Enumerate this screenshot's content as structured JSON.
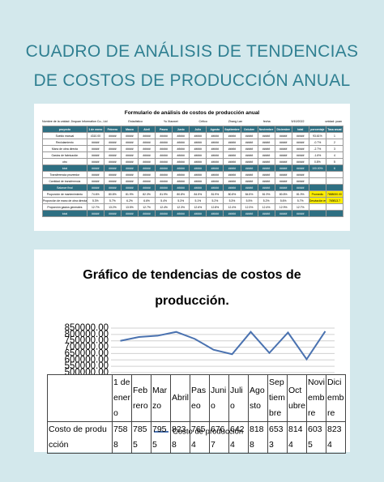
{
  "header": {
    "title_line1": "CUADRO DE ANÁLISIS DE TENDENCIAS",
    "title_line2": "DE COSTOS DE PRODUCCIÓN ANUAL"
  },
  "sheet": {
    "title": "Formulario de análisis de costos de producción anual",
    "info": [
      "Nombre de la unidad: Jinquan Information Co., Ltd",
      "Estadístico",
      "Yu Xiaowei",
      "Crítico",
      "Zhang Lan",
      "fecha",
      "5/10/2022",
      "unidad: yuan"
    ],
    "header": [
      "proyecto",
      "1 de enero",
      "Febrero",
      "Marzo",
      "Abril",
      "Paseo",
      "Junio",
      "Julio",
      "Agosto",
      "Septiembre",
      "Octubre",
      "Noviembre",
      "Diciembre",
      "total",
      "porcentaje",
      "Tasa anual"
    ],
    "rows": [
      [
        "Sueldo manual",
        "4310.00",
        "#####",
        "#####",
        "#####",
        "#####",
        "#####",
        "#####",
        "#####",
        "#####",
        "#####",
        "#####",
        "#####",
        "#####",
        "93.61%",
        "1"
      ],
      [
        "Reclutamiento",
        "#####",
        "#####",
        "#####",
        "#####",
        "#####",
        "#####",
        "#####",
        "#####",
        "#####",
        "#####",
        "#####",
        "#####",
        "#####",
        "-0.7%",
        "2"
      ],
      [
        "Mano de obra directa",
        "#####",
        "#####",
        "#####",
        "#####",
        "#####",
        "#####",
        "#####",
        "#####",
        "#####",
        "#####",
        "#####",
        "#####",
        "#####",
        "-2.7%",
        "3"
      ],
      [
        "Gastos de fabricación",
        "#####",
        "#####",
        "#####",
        "#####",
        "#####",
        "#####",
        "#####",
        "#####",
        "#####",
        "#####",
        "#####",
        "#####",
        "#####",
        "-1.6%",
        "4"
      ],
      [
        "otro",
        "#####",
        "#####",
        "#####",
        "#####",
        "#####",
        "#####",
        "#####",
        "#####",
        "#####",
        "#####",
        "#####",
        "#####",
        "#####",
        "0.8%",
        "5"
      ],
      [
        "total",
        "#####",
        "#####",
        "#####",
        "#####",
        "#####",
        "#####",
        "#####",
        "#####",
        "#####",
        "#####",
        "#####",
        "#####",
        "#####",
        "100.00%",
        "6"
      ],
      [
        "Transferencia proveedor",
        "#####",
        "#####",
        "#####",
        "#####",
        "#####",
        "#####",
        "#####",
        "#####",
        "#####",
        "#####",
        "#####",
        "#####",
        "#####",
        "",
        ""
      ],
      [
        "Cantidad de transferencia",
        "#####",
        "#####",
        "#####",
        "#####",
        "#####",
        "#####",
        "#####",
        "#####",
        "#####",
        "#####",
        "#####",
        "#####",
        "#####",
        "",
        ""
      ],
      [
        "Balance final",
        "#####",
        "#####",
        "#####",
        "#####",
        "#####",
        "#####",
        "#####",
        "#####",
        "#####",
        "#####",
        "#####",
        "#####",
        "#####",
        "",
        ""
      ],
      [
        "Proporción de mantenimiento",
        "74.6%",
        "80.8%",
        "81.9%",
        "82.3%",
        "81.9%",
        "80.8%",
        "84.5%",
        "81.9%",
        "80.8%",
        "84.5%",
        "81.9%",
        "80.8%",
        "81.9%",
        "Promedio",
        "7888000.00"
      ],
      [
        "Proporción de mano de obra directa",
        "5.3%",
        "5.7%",
        "6.2%",
        "6.6%",
        "5.4%",
        "5.3%",
        "5.1%",
        "5.2%",
        "5.3%",
        "5.5%",
        "5.2%",
        "5.6%",
        "5.7%",
        "Desviación estándar",
        "769813.7"
      ],
      [
        "Proporción gastos generales",
        "12.7%",
        "13.2%",
        "13.5%",
        "12.7%",
        "12.4%",
        "12.3%",
        "12.6%",
        "12.8%",
        "12.4%",
        "12.3%",
        "12.4%",
        "12.9%",
        "12.7%",
        "",
        ""
      ],
      [
        "total",
        "#####",
        "#####",
        "#####",
        "#####",
        "#####",
        "#####",
        "#####",
        "#####",
        "#####",
        "#####",
        "#####",
        "#####",
        "#####",
        "",
        ""
      ]
    ]
  },
  "chart_data": {
    "type": "line",
    "title_line1": "Gráfico de tendencias de costos de",
    "title_line2": "producción.",
    "categories": [
      "1 de enero",
      "Febrero",
      "Marzo",
      "Abril",
      "Paseo",
      "Junio",
      "Julio",
      "Agosto",
      "Septiembre",
      "Octubre",
      "Noviembre",
      "Diciembre"
    ],
    "series": [
      {
        "name": "Costo de producción",
        "color": "#4a72b0",
        "values": [
          750000,
          780000,
          790000,
          820000,
          765000,
          680000,
          645000,
          820000,
          655000,
          815000,
          605000,
          825000
        ]
      }
    ],
    "ylim": [
      500000,
      850000
    ],
    "yticks": [
      {
        "value": 500000,
        "label": "500000.00"
      },
      {
        "value": 550000,
        "label": "550000.00"
      },
      {
        "value": 600000,
        "label": "600000.00"
      },
      {
        "value": 650000,
        "label": "650000.00"
      },
      {
        "value": 700000,
        "label": "700000.00"
      },
      {
        "value": 750000,
        "label": "750000.00"
      },
      {
        "value": 800000,
        "label": "800000.00"
      },
      {
        "value": 850000,
        "label": "850000.00"
      }
    ],
    "grid": true,
    "data_table": {
      "row_label": "Costo de producción",
      "cells": [
        "7588",
        "7855",
        "7955",
        "8238",
        "7654",
        "6767",
        "6424",
        "8188",
        "6533",
        "8144",
        "6035",
        "8234"
      ]
    }
  }
}
